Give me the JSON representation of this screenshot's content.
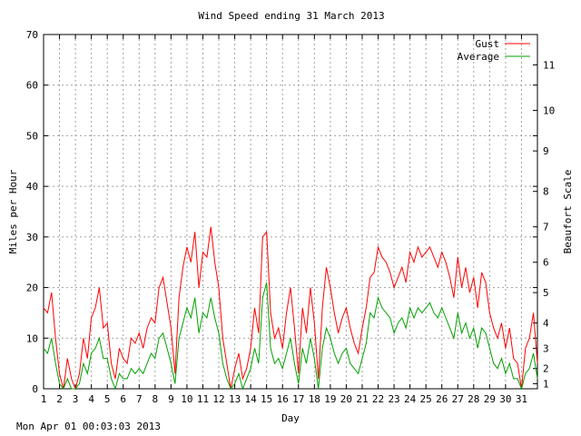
{
  "footer": {
    "timestamp": "Mon Apr 01 00:03:03 2013"
  },
  "chart_data": {
    "type": "line",
    "title": "Wind Speed ending 31 March 2013",
    "xlabel": "Day",
    "ylabel": "Miles per Hour",
    "y2label": "Beaufort Scale",
    "xlim": [
      1,
      32
    ],
    "ylim": [
      0,
      70
    ],
    "x_ticks": [
      1,
      2,
      3,
      4,
      5,
      6,
      7,
      8,
      9,
      10,
      11,
      12,
      13,
      14,
      15,
      16,
      17,
      18,
      19,
      20,
      21,
      22,
      23,
      24,
      25,
      26,
      27,
      28,
      29,
      30,
      31
    ],
    "y_ticks": [
      0,
      10,
      20,
      30,
      40,
      50,
      60,
      70
    ],
    "y2_ticks": [
      {
        "label": "1",
        "mph": 1
      },
      {
        "label": "2",
        "mph": 4
      },
      {
        "label": "3",
        "mph": 8
      },
      {
        "label": "4",
        "mph": 13
      },
      {
        "label": "5",
        "mph": 19
      },
      {
        "label": "6",
        "mph": 25
      },
      {
        "label": "7",
        "mph": 32
      },
      {
        "label": "8",
        "mph": 39
      },
      {
        "label": "9",
        "mph": 47
      },
      {
        "label": "10",
        "mph": 55
      },
      {
        "label": "11",
        "mph": 64
      }
    ],
    "grid": true,
    "legend_position": "top-right",
    "series": [
      {
        "name": "Gust",
        "color": "#ff0000",
        "x": [
          1.0,
          1.25,
          1.5,
          1.75,
          2.0,
          2.25,
          2.5,
          2.75,
          3.0,
          3.25,
          3.5,
          3.75,
          4.0,
          4.25,
          4.5,
          4.75,
          5.0,
          5.25,
          5.5,
          5.75,
          6.0,
          6.25,
          6.5,
          6.75,
          7.0,
          7.25,
          7.5,
          7.75,
          8.0,
          8.25,
          8.5,
          8.75,
          9.0,
          9.25,
          9.5,
          9.75,
          10.0,
          10.25,
          10.5,
          10.75,
          11.0,
          11.25,
          11.5,
          11.75,
          12.0,
          12.25,
          12.5,
          12.75,
          13.0,
          13.25,
          13.5,
          13.75,
          14.0,
          14.25,
          14.5,
          14.75,
          15.0,
          15.25,
          15.5,
          15.75,
          16.0,
          16.25,
          16.5,
          16.75,
          17.0,
          17.25,
          17.5,
          17.75,
          18.0,
          18.25,
          18.5,
          18.75,
          19.0,
          19.25,
          19.5,
          19.75,
          20.0,
          20.25,
          20.5,
          20.75,
          21.0,
          21.25,
          21.5,
          21.75,
          22.0,
          22.25,
          22.5,
          22.75,
          23.0,
          23.25,
          23.5,
          23.75,
          24.0,
          24.25,
          24.5,
          24.75,
          25.0,
          25.25,
          25.5,
          25.75,
          26.0,
          26.25,
          26.5,
          26.75,
          27.0,
          27.25,
          27.5,
          27.75,
          28.0,
          28.25,
          28.5,
          28.75,
          29.0,
          29.25,
          29.5,
          29.75,
          30.0,
          30.25,
          30.5,
          30.75,
          31.0,
          31.25,
          31.5,
          31.75,
          32.0
        ],
        "values": [
          16,
          15,
          19,
          10,
          3,
          0,
          6,
          2,
          0,
          3,
          10,
          6,
          14,
          16,
          20,
          12,
          13,
          5,
          2,
          8,
          6,
          5,
          10,
          9,
          11,
          8,
          12,
          14,
          13,
          20,
          22,
          17,
          12,
          3,
          18,
          24,
          28,
          25,
          31,
          20,
          27,
          26,
          32,
          25,
          20,
          10,
          5,
          0,
          4,
          7,
          2,
          4,
          8,
          16,
          11,
          30,
          31,
          15,
          10,
          12,
          8,
          15,
          20,
          12,
          3,
          16,
          11,
          20,
          13,
          2,
          16,
          24,
          20,
          15,
          11,
          14,
          16,
          12,
          9,
          7,
          12,
          16,
          22,
          23,
          28,
          26,
          25,
          23,
          20,
          22,
          24,
          21,
          27,
          25,
          28,
          26,
          27,
          28,
          26,
          24,
          27,
          25,
          22,
          18,
          26,
          20,
          24,
          19,
          22,
          16,
          23,
          21,
          15,
          12,
          10,
          13,
          8,
          12,
          6,
          5,
          0,
          8,
          10,
          15,
          5
        ]
      },
      {
        "name": "Average",
        "color": "#00a000",
        "x": [
          1.0,
          1.25,
          1.5,
          1.75,
          2.0,
          2.25,
          2.5,
          2.75,
          3.0,
          3.25,
          3.5,
          3.75,
          4.0,
          4.25,
          4.5,
          4.75,
          5.0,
          5.25,
          5.5,
          5.75,
          6.0,
          6.25,
          6.5,
          6.75,
          7.0,
          7.25,
          7.5,
          7.75,
          8.0,
          8.25,
          8.5,
          8.75,
          9.0,
          9.25,
          9.5,
          9.75,
          10.0,
          10.25,
          10.5,
          10.75,
          11.0,
          11.25,
          11.5,
          11.75,
          12.0,
          12.25,
          12.5,
          12.75,
          13.0,
          13.25,
          13.5,
          13.75,
          14.0,
          14.25,
          14.5,
          14.75,
          15.0,
          15.25,
          15.5,
          15.75,
          16.0,
          16.25,
          16.5,
          16.75,
          17.0,
          17.25,
          17.5,
          17.75,
          18.0,
          18.25,
          18.5,
          18.75,
          19.0,
          19.25,
          19.5,
          19.75,
          20.0,
          20.25,
          20.5,
          20.75,
          21.0,
          21.25,
          21.5,
          21.75,
          22.0,
          22.25,
          22.5,
          22.75,
          23.0,
          23.25,
          23.5,
          23.75,
          24.0,
          24.25,
          24.5,
          24.75,
          25.0,
          25.25,
          25.5,
          25.75,
          26.0,
          26.25,
          26.5,
          26.75,
          27.0,
          27.25,
          27.5,
          27.75,
          28.0,
          28.25,
          28.5,
          28.75,
          29.0,
          29.25,
          29.5,
          29.75,
          30.0,
          30.25,
          30.5,
          30.75,
          31.0,
          31.25,
          31.5,
          31.75,
          32.0
        ],
        "values": [
          8,
          7,
          10,
          5,
          1,
          0,
          2,
          0,
          0,
          1,
          5,
          3,
          7,
          8,
          10,
          6,
          6,
          2,
          0,
          3,
          2,
          2,
          4,
          3,
          4,
          3,
          5,
          7,
          6,
          10,
          11,
          8,
          5,
          1,
          10,
          13,
          16,
          14,
          18,
          11,
          15,
          14,
          18,
          14,
          11,
          5,
          2,
          0,
          1,
          3,
          0,
          2,
          4,
          8,
          5,
          18,
          21,
          8,
          5,
          6,
          4,
          7,
          10,
          5,
          1,
          8,
          5,
          10,
          6,
          0,
          8,
          12,
          10,
          7,
          5,
          7,
          8,
          5,
          4,
          3,
          6,
          9,
          15,
          14,
          18,
          16,
          15,
          14,
          11,
          13,
          14,
          12,
          16,
          14,
          16,
          15,
          16,
          17,
          15,
          14,
          16,
          14,
          12,
          10,
          15,
          11,
          13,
          10,
          12,
          8,
          12,
          11,
          8,
          5,
          4,
          6,
          3,
          5,
          2,
          2,
          0,
          3,
          4,
          7,
          2
        ]
      }
    ]
  }
}
